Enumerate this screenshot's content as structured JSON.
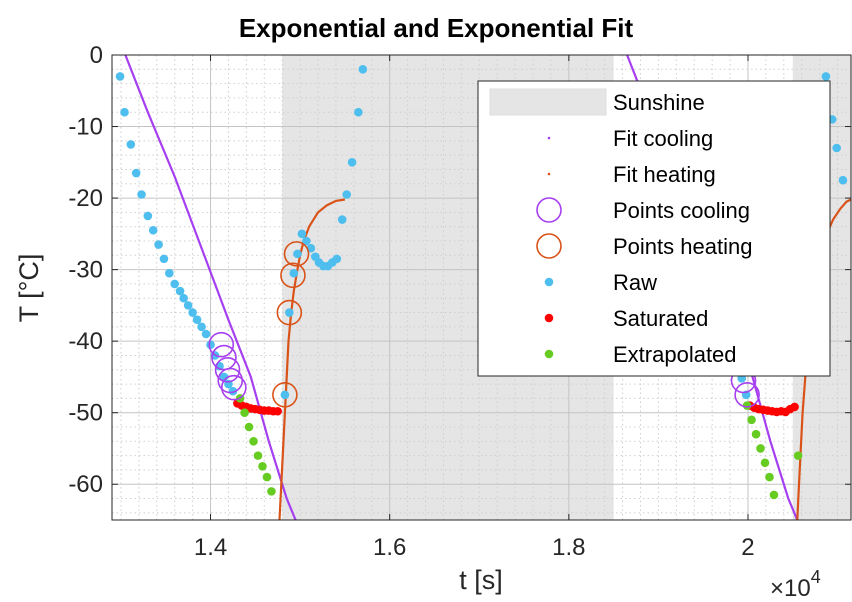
{
  "chart_data": {
    "type": "scatter",
    "title": "Exponential and Exponential Fit",
    "xlabel": "t [s]",
    "ylabel": "T [°C]",
    "x_exponent_label": "×10",
    "x_exponent_power": "4",
    "xlim": [
      12900,
      21150
    ],
    "ylim": [
      -65,
      0
    ],
    "x_ticks": [
      14000,
      16000,
      18000,
      20000
    ],
    "x_tick_labels": [
      "1.4",
      "1.6",
      "1.8",
      "2"
    ],
    "y_ticks": [
      0,
      -10,
      -20,
      -30,
      -40,
      -50,
      -60
    ],
    "y_tick_labels": [
      "0",
      "-10",
      "-20",
      "-30",
      "-40",
      "-50",
      "-60"
    ],
    "grid": "on (major and minor, dotted)",
    "legend_position": "top-right",
    "colors": {
      "sunshine": "#e5e5e5",
      "fit_cooling": "#a63ff0",
      "fit_heating": "#d95319",
      "raw": "#4dbeee",
      "saturated": "#ff0000",
      "extrapolated": "#66cc22"
    },
    "sunshine_intervals": [
      [
        14800,
        18500
      ],
      [
        20500,
        21150
      ]
    ],
    "legend": [
      "Sunshine",
      "Fit cooling",
      "Fit heating",
      "Points cooling",
      "Points heating",
      "Raw",
      "Saturated",
      "Extrapolated"
    ],
    "series": [
      {
        "name": "Fit cooling",
        "kind": "line",
        "segments": [
          [
            [
              13050,
              0
            ],
            [
              13300,
              -8
            ],
            [
              13600,
              -17
            ],
            [
              13900,
              -27
            ],
            [
              14200,
              -37
            ],
            [
              14450,
              -45
            ],
            [
              14650,
              -54
            ],
            [
              14850,
              -62
            ],
            [
              14950,
              -65
            ]
          ],
          [
            [
              18650,
              0
            ],
            [
              18900,
              -8
            ],
            [
              19200,
              -17
            ],
            [
              19500,
              -27
            ],
            [
              19800,
              -37
            ],
            [
              20050,
              -45
            ],
            [
              20250,
              -54
            ],
            [
              20450,
              -62
            ],
            [
              20550,
              -65
            ]
          ]
        ]
      },
      {
        "name": "Fit heating",
        "kind": "line",
        "segments": [
          [
            [
              14770,
              -65
            ],
            [
              14790,
              -60
            ],
            [
              14810,
              -55
            ],
            [
              14830,
              -50
            ],
            [
              14850,
              -45
            ],
            [
              14870,
              -40
            ],
            [
              14900,
              -36
            ],
            [
              14930,
              -33
            ],
            [
              14970,
              -30
            ],
            [
              15000,
              -28
            ],
            [
              15040,
              -26
            ],
            [
              15100,
              -24
            ],
            [
              15200,
              -22
            ],
            [
              15300,
              -21
            ],
            [
              15400,
              -20.4
            ],
            [
              15500,
              -20.2
            ]
          ],
          [
            [
              20550,
              -65
            ],
            [
              20570,
              -60
            ],
            [
              20590,
              -55
            ],
            [
              20610,
              -50
            ],
            [
              20640,
              -45
            ],
            [
              20680,
              -38
            ],
            [
              20720,
              -33
            ],
            [
              20760,
              -30
            ],
            [
              20820,
              -27
            ],
            [
              20880,
              -25
            ],
            [
              20950,
              -23
            ],
            [
              21030,
              -21.5
            ],
            [
              21100,
              -20.5
            ],
            [
              21150,
              -20.2
            ]
          ]
        ]
      },
      {
        "name": "Points cooling",
        "kind": "circles",
        "points": [
          [
            14120,
            -40.5
          ],
          [
            14150,
            -42.3
          ],
          [
            14190,
            -44
          ],
          [
            14220,
            -45.5
          ],
          [
            14260,
            -46.5
          ],
          [
            19950,
            -45.5
          ],
          [
            19990,
            -47.5
          ]
        ]
      },
      {
        "name": "Points heating",
        "kind": "circles",
        "points": [
          [
            14830,
            -47.5
          ],
          [
            14880,
            -36
          ],
          [
            14920,
            -30.8
          ],
          [
            14960,
            -27.8
          ]
        ]
      },
      {
        "name": "Raw",
        "kind": "dots",
        "points": [
          [
            12990,
            -3
          ],
          [
            13040,
            -8
          ],
          [
            13110,
            -12.5
          ],
          [
            13170,
            -16.5
          ],
          [
            13230,
            -19.5
          ],
          [
            13300,
            -22.5
          ],
          [
            13360,
            -24.5
          ],
          [
            13420,
            -26.5
          ],
          [
            13480,
            -28.5
          ],
          [
            13540,
            -30.5
          ],
          [
            13600,
            -32
          ],
          [
            13660,
            -33
          ],
          [
            13700,
            -34
          ],
          [
            13750,
            -35
          ],
          [
            13800,
            -36
          ],
          [
            13850,
            -37
          ],
          [
            13900,
            -38
          ],
          [
            13950,
            -39
          ],
          [
            14000,
            -40.5
          ],
          [
            14050,
            -42
          ],
          [
            14100,
            -43.5
          ],
          [
            14150,
            -45
          ],
          [
            14200,
            -46
          ],
          [
            14250,
            -47
          ],
          [
            14830,
            -47.5
          ],
          [
            14880,
            -36
          ],
          [
            14930,
            -30.5
          ],
          [
            14970,
            -27.8
          ],
          [
            15020,
            -25
          ],
          [
            15070,
            -26
          ],
          [
            15120,
            -27
          ],
          [
            15170,
            -28.2
          ],
          [
            15210,
            -29
          ],
          [
            15260,
            -29.5
          ],
          [
            15310,
            -29.5
          ],
          [
            15360,
            -29
          ],
          [
            15410,
            -28.5
          ],
          [
            15470,
            -23
          ],
          [
            15520,
            -19.5
          ],
          [
            15580,
            -15
          ],
          [
            15650,
            -8
          ],
          [
            15700,
            -2
          ],
          [
            19930,
            -45.2
          ],
          [
            19980,
            -47.5
          ],
          [
            20870,
            -3
          ],
          [
            20940,
            -9
          ],
          [
            20990,
            -13
          ],
          [
            21060,
            -17.5
          ]
        ]
      },
      {
        "name": "Saturated",
        "kind": "dots",
        "points": [
          [
            14300,
            -48.7
          ],
          [
            14350,
            -49
          ],
          [
            14400,
            -49.2
          ],
          [
            14450,
            -49.4
          ],
          [
            14500,
            -49.5
          ],
          [
            14550,
            -49.6
          ],
          [
            14600,
            -49.7
          ],
          [
            14650,
            -49.7
          ],
          [
            14700,
            -49.8
          ],
          [
            14750,
            -49.8
          ],
          [
            20020,
            -49
          ],
          [
            20070,
            -49.3
          ],
          [
            20120,
            -49.5
          ],
          [
            20170,
            -49.6
          ],
          [
            20220,
            -49.7
          ],
          [
            20270,
            -49.8
          ],
          [
            20320,
            -49.9
          ],
          [
            20370,
            -49.8
          ],
          [
            20420,
            -49.9
          ],
          [
            20470,
            -49.5
          ],
          [
            20520,
            -49.2
          ]
        ]
      },
      {
        "name": "Extrapolated",
        "kind": "dots",
        "points": [
          [
            14330,
            -48
          ],
          [
            14380,
            -50
          ],
          [
            14430,
            -52
          ],
          [
            14480,
            -54
          ],
          [
            14530,
            -56
          ],
          [
            14580,
            -57.5
          ],
          [
            14630,
            -59
          ],
          [
            14680,
            -61
          ],
          [
            19990,
            -49
          ],
          [
            20040,
            -51
          ],
          [
            20090,
            -53
          ],
          [
            20140,
            -55
          ],
          [
            20190,
            -57
          ],
          [
            20240,
            -59
          ],
          [
            20290,
            -61.5
          ],
          [
            20560,
            -56
          ]
        ]
      }
    ]
  }
}
